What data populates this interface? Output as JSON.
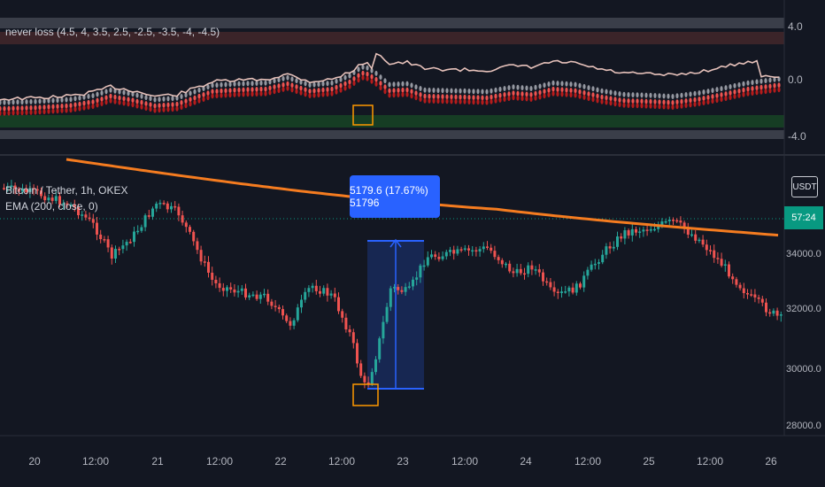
{
  "indicator": {
    "legend": "never loss (4.5, 4, 3.5, 2.5, -2.5, -3.5, -4, -4.5)",
    "axis_ticks": [
      "4.0",
      "0.0",
      "-4.0"
    ]
  },
  "main": {
    "legend_symbol": "Bitcoin / Tether, 1h, OKEX",
    "legend_ema": "EMA (200, close, 0)",
    "currency_button": "USDT",
    "last_price_tag": "57:24",
    "measure_label": "5179.6 (17.67%) 51796",
    "axis_ticks": [
      "34000.0",
      "32000.0",
      "30000.0",
      "28000.0"
    ]
  },
  "time_axis": [
    "20",
    "12:00",
    "21",
    "12:00",
    "22",
    "12:00",
    "23",
    "12:00",
    "24",
    "12:00",
    "25",
    "12:00",
    "26"
  ],
  "colors": {
    "up": "#26a69a",
    "down": "#ef5350",
    "ema": "#f57c20",
    "measure": "#2962ff",
    "highlight": "#ff9800",
    "background": "#131722"
  },
  "icons": [
    "arrow-up-icon"
  ]
}
